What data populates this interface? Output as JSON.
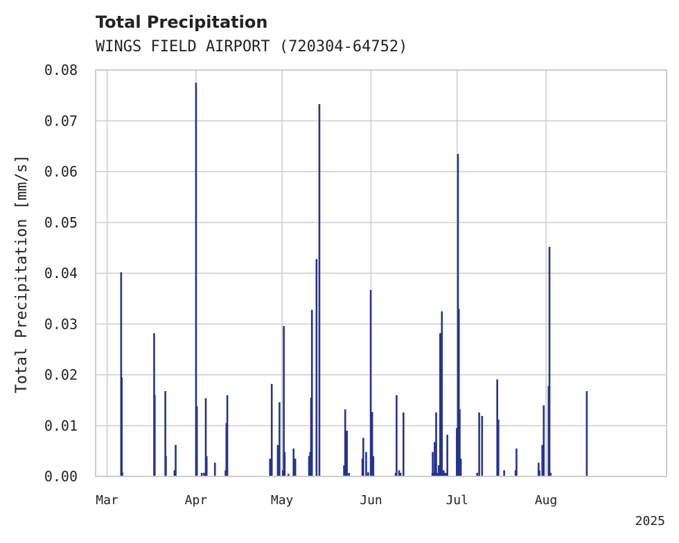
{
  "chart_data": {
    "type": "bar",
    "title": "Total Precipitation",
    "subtitle": "WINGS FIELD AIRPORT (720304-64752)",
    "ylabel": "Total Precipitation [mm/s]",
    "xlabel": "",
    "year_label": "2025",
    "ylim": [
      0,
      0.08
    ],
    "yticks": [
      0.0,
      0.01,
      0.02,
      0.03,
      0.04,
      0.05,
      0.06,
      0.07,
      0.08
    ],
    "ytick_labels": [
      "0.00",
      "0.01",
      "0.02",
      "0.03",
      "0.04",
      "0.05",
      "0.06",
      "0.07",
      "0.08"
    ],
    "xlim_day": [
      -4,
      195
    ],
    "xticks": [
      {
        "label": "Mar",
        "day": 0
      },
      {
        "label": "Apr",
        "day": 31
      },
      {
        "label": "May",
        "day": 61
      },
      {
        "label": "Jun",
        "day": 92
      },
      {
        "label": "Jul",
        "day": 122
      },
      {
        "label": "Aug",
        "day": 153
      }
    ],
    "grid": true,
    "series": [
      {
        "name": "Total Precipitation",
        "color": "#27348b",
        "points": [
          {
            "day": 4.9,
            "value": 0.0402
          },
          {
            "day": 5.1,
            "value": 0.0195
          },
          {
            "day": 5.3,
            "value": 0.0008
          },
          {
            "day": 16.4,
            "value": 0.0282
          },
          {
            "day": 16.6,
            "value": 0.016
          },
          {
            "day": 20.3,
            "value": 0.0168
          },
          {
            "day": 20.5,
            "value": 0.004
          },
          {
            "day": 23.5,
            "value": 0.0012
          },
          {
            "day": 23.9,
            "value": 0.0062
          },
          {
            "day": 31.0,
            "value": 0.0775
          },
          {
            "day": 31.3,
            "value": 0.0138
          },
          {
            "day": 33.0,
            "value": 0.0007
          },
          {
            "day": 33.8,
            "value": 0.0007
          },
          {
            "day": 34.4,
            "value": 0.0154
          },
          {
            "day": 34.7,
            "value": 0.004
          },
          {
            "day": 37.6,
            "value": 0.0027
          },
          {
            "day": 41.3,
            "value": 0.0012
          },
          {
            "day": 41.6,
            "value": 0.0105
          },
          {
            "day": 41.9,
            "value": 0.016
          },
          {
            "day": 56.8,
            "value": 0.0035
          },
          {
            "day": 57.4,
            "value": 0.0182
          },
          {
            "day": 59.5,
            "value": 0.0062
          },
          {
            "day": 60.1,
            "value": 0.0146
          },
          {
            "day": 61.3,
            "value": 0.0012
          },
          {
            "day": 61.6,
            "value": 0.0296
          },
          {
            "day": 61.9,
            "value": 0.0048
          },
          {
            "day": 63.2,
            "value": 0.0005
          },
          {
            "day": 65.0,
            "value": 0.0055
          },
          {
            "day": 65.6,
            "value": 0.0035
          },
          {
            "day": 70.4,
            "value": 0.004
          },
          {
            "day": 70.8,
            "value": 0.0048
          },
          {
            "day": 71.1,
            "value": 0.0155
          },
          {
            "day": 71.4,
            "value": 0.0328
          },
          {
            "day": 73.0,
            "value": 0.0428
          },
          {
            "day": 74.0,
            "value": 0.0733
          },
          {
            "day": 82.6,
            "value": 0.0022
          },
          {
            "day": 83.0,
            "value": 0.0132
          },
          {
            "day": 83.6,
            "value": 0.009
          },
          {
            "day": 84.3,
            "value": 0.0007
          },
          {
            "day": 89.0,
            "value": 0.0035
          },
          {
            "day": 89.3,
            "value": 0.0076
          },
          {
            "day": 90.3,
            "value": 0.0048
          },
          {
            "day": 91.0,
            "value": 0.0008
          },
          {
            "day": 91.9,
            "value": 0.0367
          },
          {
            "day": 92.4,
            "value": 0.0127
          },
          {
            "day": 92.8,
            "value": 0.004
          },
          {
            "day": 100.6,
            "value": 0.0007
          },
          {
            "day": 100.9,
            "value": 0.016
          },
          {
            "day": 101.8,
            "value": 0.0012
          },
          {
            "day": 102.3,
            "value": 0.0007
          },
          {
            "day": 103.3,
            "value": 0.0126
          },
          {
            "day": 113.4,
            "value": 0.0007
          },
          {
            "day": 114.0,
            "value": 0.0007
          },
          {
            "day": 114.7,
            "value": 0.0126
          },
          {
            "day": 115.2,
            "value": 0.0007
          },
          {
            "day": 116.1,
            "value": 0.0282
          },
          {
            "day": 116.7,
            "value": 0.0325
          },
          {
            "day": 117.3,
            "value": 0.0012
          },
          {
            "day": 117.6,
            "value": 0.0007
          },
          {
            "day": 118.0,
            "value": 0.0007
          },
          {
            "day": 118.6,
            "value": 0.0082
          },
          {
            "day": 121.9,
            "value": 0.0095
          },
          {
            "day": 122.3,
            "value": 0.0635
          },
          {
            "day": 122.6,
            "value": 0.033
          },
          {
            "day": 122.9,
            "value": 0.0132
          },
          {
            "day": 123.3,
            "value": 0.0035
          },
          {
            "day": 113.5,
            "value": 0.0048
          },
          {
            "day": 114.2,
            "value": 0.0068
          },
          {
            "day": 115.6,
            "value": 0.0022
          },
          {
            "day": 129.0,
            "value": 0.0007
          },
          {
            "day": 129.7,
            "value": 0.0126
          },
          {
            "day": 130.7,
            "value": 0.0119
          },
          {
            "day": 136.0,
            "value": 0.0191
          },
          {
            "day": 136.4,
            "value": 0.0112
          },
          {
            "day": 138.4,
            "value": 0.0012
          },
          {
            "day": 142.4,
            "value": 0.0012
          },
          {
            "day": 142.7,
            "value": 0.0055
          },
          {
            "day": 150.4,
            "value": 0.0027
          },
          {
            "day": 150.7,
            "value": 0.0012
          },
          {
            "day": 151.7,
            "value": 0.0062
          },
          {
            "day": 152.2,
            "value": 0.014
          },
          {
            "day": 153.9,
            "value": 0.0178
          },
          {
            "day": 154.2,
            "value": 0.0452
          },
          {
            "day": 154.6,
            "value": 0.0007
          },
          {
            "day": 167.2,
            "value": 0.0168
          }
        ]
      }
    ]
  }
}
